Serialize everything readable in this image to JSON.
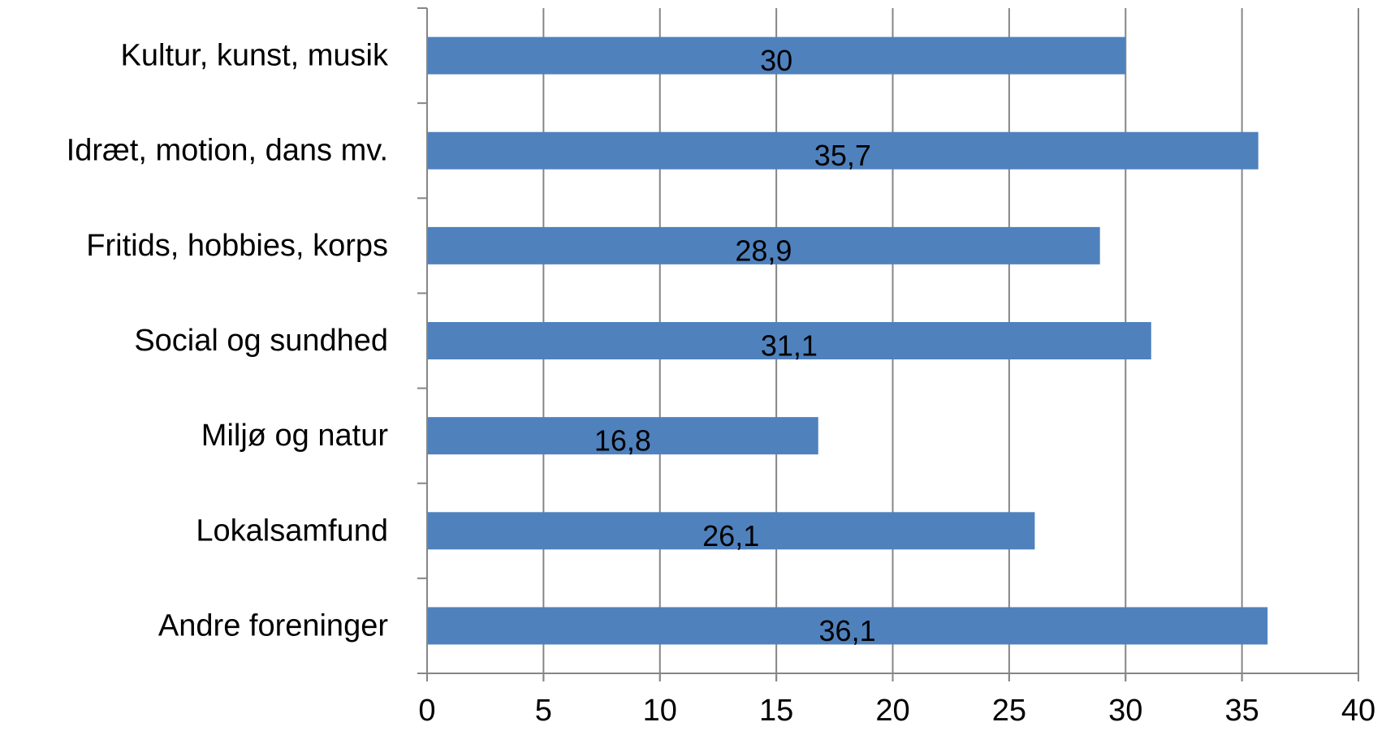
{
  "chart_data": {
    "type": "bar",
    "orientation": "horizontal",
    "categories": [
      "Kultur, kunst, musik",
      "Idræt, motion, dans mv.",
      "Fritids, hobbies, korps",
      "Social og sundhed",
      "Miljø og natur",
      "Lokalsamfund",
      "Andre foreninger"
    ],
    "values": [
      30,
      35.7,
      28.9,
      31.1,
      16.8,
      26.1,
      36.1
    ],
    "data_labels": [
      "30",
      "35,7",
      "28,9",
      "31,1",
      "16,8",
      "26,1",
      "36,1"
    ],
    "xlim": [
      0,
      40
    ],
    "xticks": [
      0,
      5,
      10,
      15,
      20,
      25,
      30,
      35,
      40
    ],
    "xtick_labels": [
      "0",
      "5",
      "10",
      "15",
      "20",
      "25",
      "30",
      "35",
      "40"
    ],
    "grid": "vertical",
    "legend": "none",
    "bar_color": "#4f81bd",
    "grid_color": "#868686"
  }
}
